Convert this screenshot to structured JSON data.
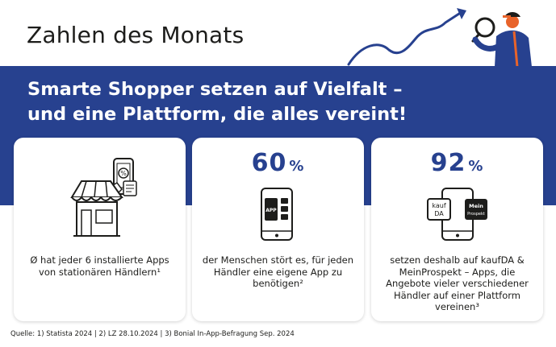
{
  "header": {
    "title": "Zahlen des Monats"
  },
  "headline": {
    "line1": "Smarte Shopper setzen auf Vielfalt –",
    "line2": "und eine Plattform, die alles vereint!"
  },
  "cards": [
    {
      "text": "Ø hat jeder 6 installierte Apps von stationären Händlern¹"
    },
    {
      "stat": "60",
      "unit": "%",
      "app_label": "APP",
      "text": "der Menschen stört es, für jeden Händler eine eigene App zu benötigen²"
    },
    {
      "stat": "92",
      "unit": "%",
      "app1_line1": "kauf",
      "app1_line2": "DA",
      "app2_line1": "Mein",
      "app2_line2": "Prospekt",
      "text": "setzen deshalb auf kaufDA & MeinProspekt – Apps, die Angebote vieler verschiedener Händler auf einer Plattform vereinen³"
    }
  ],
  "footnote": "Quelle: 1) Statista 2024 | 2) LZ 28.10.2024 | 3) Bonial In-App-Befragung Sep. 2024",
  "colors": {
    "brand_blue": "#27418f",
    "accent_orange": "#e8632a",
    "text": "#1d1d1b"
  },
  "icons": [
    "store-icon",
    "smartphone-app-icon",
    "smartphone-kaufda-meinprospekt-icon",
    "growth-arrow-icon",
    "person-magnifier-illustration"
  ]
}
